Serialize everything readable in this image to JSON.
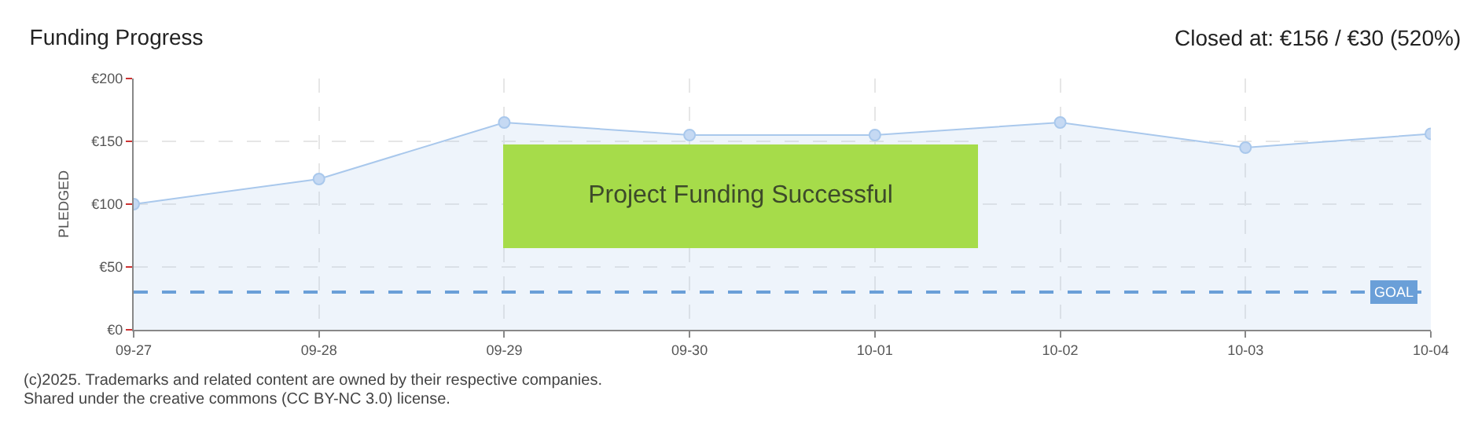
{
  "chart_data": {
    "type": "area",
    "title": "Funding Progress",
    "ylabel": "PLEDGED",
    "categories": [
      "09-27",
      "09-28",
      "09-29",
      "09-30",
      "10-01",
      "10-02",
      "10-03",
      "10-04"
    ],
    "series": [
      {
        "color": "#a9c8ec",
        "values": [
          100,
          120,
          165,
          155,
          155,
          165,
          145,
          156
        ]
      }
    ],
    "ylim": [
      0,
      200
    ],
    "yticks": [
      {
        "value": 0,
        "label": "€0"
      },
      {
        "value": 50,
        "label": "€50"
      },
      {
        "value": 100,
        "label": "€100"
      },
      {
        "value": 150,
        "label": "€150"
      },
      {
        "value": 200,
        "label": "€200"
      }
    ],
    "grid": true,
    "marker": "circle",
    "line_style": "solid",
    "ref_lines": [
      {
        "axis": "y",
        "value": 30,
        "label": "GOAL",
        "color": "#6a9fd8",
        "line_style": "dashed"
      }
    ],
    "annotations": [
      "Closed at: €156 / €30 (520%)",
      "Project Funding Successful",
      "(c)2025. Trademarks and related content are owned by their respective companies.",
      "Shared under the creative commons (CC BY-NC 3.0) license."
    ]
  }
}
